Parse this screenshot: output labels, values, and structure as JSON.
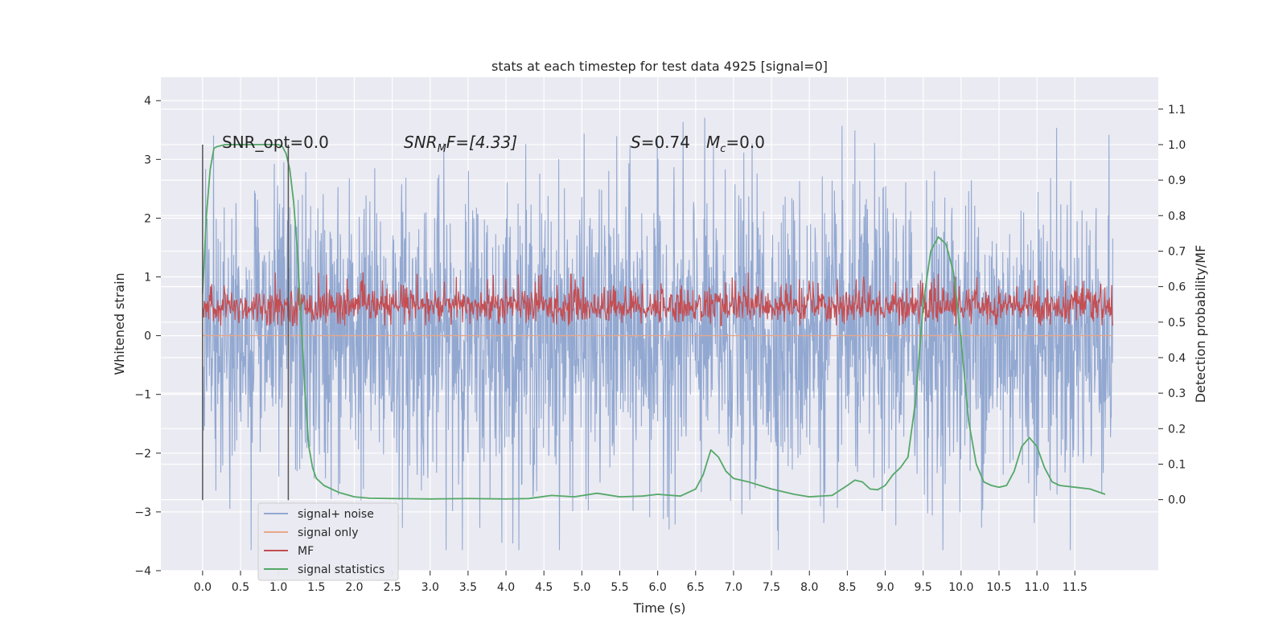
{
  "chart_data": {
    "type": "line",
    "title": "stats at each timestep for test data 4925 [signal=0]",
    "xlabel": "Time (s)",
    "ylabel": "Whitened strain",
    "ylabel_right": "Detection probability/MF",
    "xlim": [
      -0.55,
      12.6
    ],
    "ylim": [
      -4.0,
      4.4
    ],
    "ylim_right": [
      -0.2,
      1.19
    ],
    "x_ticks": [
      0.0,
      0.5,
      1.0,
      1.5,
      2.0,
      2.5,
      3.0,
      3.5,
      4.0,
      4.5,
      5.0,
      5.5,
      6.0,
      6.5,
      7.0,
      7.5,
      8.0,
      8.5,
      9.0,
      9.5,
      10.0,
      10.5,
      11.0,
      11.5
    ],
    "x_tick_labels": [
      "0.0",
      "0.5",
      "1.0",
      "1.5",
      "2.0",
      "2.5",
      "3.0",
      "3.5",
      "4.0",
      "4.5",
      "5.0",
      "5.5",
      "6.0",
      "6.5",
      "7.0",
      "7.5",
      "8.0",
      "8.5",
      "9.0",
      "9.5",
      "10.0",
      "10.5",
      "11.0",
      "11.5"
    ],
    "y_ticks": [
      -4,
      -3,
      -2,
      -1,
      0,
      1,
      2,
      3,
      4
    ],
    "y_tick_labels": [
      "−4",
      "−3",
      "−2",
      "−1",
      "0",
      "1",
      "2",
      "3",
      "4"
    ],
    "y_ticks_right": [
      0.0,
      0.1,
      0.2,
      0.3,
      0.4,
      0.5,
      0.6,
      0.7,
      0.8,
      0.9,
      1.0,
      1.1
    ],
    "y_tick_labels_right": [
      "0.0",
      "0.1",
      "0.2",
      "0.3",
      "0.4",
      "0.5",
      "0.6",
      "0.7",
      "0.8",
      "0.9",
      "1.0",
      "1.1"
    ],
    "grid": true,
    "legend_position": "lower-left",
    "annotations": {
      "snr_opt": "SNR_opt=0.0",
      "snr_mf_prefix": "SNR",
      "snr_mf_sub": "M",
      "snr_mf_suffix": "F=[4.33]",
      "s_label": "S",
      "s_value": "=0.74",
      "mc_label": "M",
      "mc_sub": "c",
      "mc_value": "=0.0"
    },
    "vertical_lines": [
      {
        "x": 0.0,
        "y_top": 3.25,
        "y_bottom": -2.8
      },
      {
        "x": 1.13,
        "y_top": 3.25,
        "y_bottom": -2.8
      }
    ],
    "series": [
      {
        "name": "signal+ noise",
        "color": "#92a8d1",
        "axis": "left",
        "x_range": [
          0.0,
          12.0
        ],
        "amplitude_bounds": {
          "upper_typical": 2.5,
          "lower_typical": -2.4,
          "max": 4.1,
          "min": -3.65
        }
      },
      {
        "name": "signal only",
        "color": "#e8a88a",
        "axis": "left",
        "x": [
          0.0,
          12.0
        ],
        "y": [
          0.0,
          0.0
        ]
      },
      {
        "name": "MF",
        "color": "#c44e52",
        "axis": "right",
        "x_range": [
          0.0,
          12.0
        ],
        "value_range": [
          0.49,
          0.64
        ]
      },
      {
        "name": "signal statistics",
        "color": "#55a868",
        "axis": "right",
        "x": [
          0.0,
          0.05,
          0.1,
          0.15,
          0.2,
          0.3,
          0.5,
          0.7,
          0.9,
          1.0,
          1.05,
          1.1,
          1.15,
          1.2,
          1.25,
          1.3,
          1.35,
          1.4,
          1.45,
          1.5,
          1.6,
          1.8,
          2.0,
          2.2,
          2.5,
          3.0,
          3.5,
          4.0,
          4.3,
          4.6,
          4.9,
          5.2,
          5.5,
          5.8,
          6.0,
          6.3,
          6.5,
          6.6,
          6.7,
          6.8,
          6.9,
          7.0,
          7.2,
          7.5,
          7.8,
          8.0,
          8.3,
          8.5,
          8.6,
          8.7,
          8.8,
          8.9,
          9.0,
          9.1,
          9.2,
          9.3,
          9.4,
          9.5,
          9.6,
          9.7,
          9.8,
          9.9,
          10.0,
          10.1,
          10.2,
          10.3,
          10.4,
          10.5,
          10.6,
          10.7,
          10.8,
          10.9,
          11.0,
          11.1,
          11.2,
          11.3,
          11.5,
          11.7,
          11.9
        ],
        "y": [
          0.58,
          0.8,
          0.93,
          0.99,
          0.995,
          1.0,
          1.0,
          1.0,
          1.0,
          1.0,
          0.995,
          0.975,
          0.93,
          0.84,
          0.7,
          0.5,
          0.3,
          0.15,
          0.09,
          0.06,
          0.04,
          0.02,
          0.008,
          0.004,
          0.003,
          0.002,
          0.003,
          0.002,
          0.003,
          0.012,
          0.008,
          0.018,
          0.008,
          0.01,
          0.015,
          0.01,
          0.03,
          0.07,
          0.14,
          0.12,
          0.08,
          0.06,
          0.05,
          0.03,
          0.015,
          0.008,
          0.012,
          0.04,
          0.055,
          0.05,
          0.03,
          0.028,
          0.04,
          0.07,
          0.09,
          0.12,
          0.28,
          0.55,
          0.7,
          0.74,
          0.72,
          0.64,
          0.45,
          0.22,
          0.1,
          0.05,
          0.04,
          0.035,
          0.04,
          0.08,
          0.15,
          0.175,
          0.15,
          0.09,
          0.05,
          0.04,
          0.035,
          0.03,
          0.015
        ]
      }
    ]
  }
}
